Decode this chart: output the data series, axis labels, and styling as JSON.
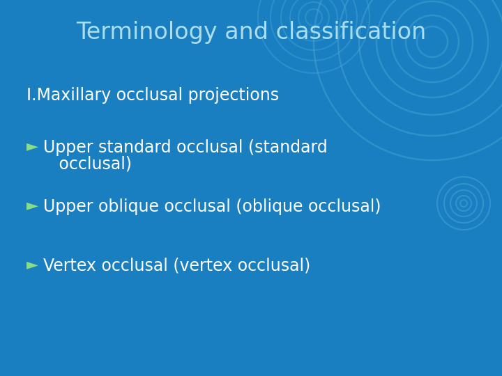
{
  "title": "Terminology and classification",
  "title_fontsize": 24,
  "title_color": "#aaddee",
  "background_color": "#1a7fc0",
  "section_label": "I.Maxillary occlusal projections",
  "section_fontsize": 17,
  "section_color": "#ffffff",
  "bullet_color": "#88dd88",
  "bullet_char": "►",
  "bullet_line1": "Upper standard occlusal (standard",
  "bullet_line1b": "   occlusal)",
  "bullet_line2": "Upper oblique occlusal (oblique occlusal)",
  "bullet_line3": "Vertex occlusal (vertex occlusal)",
  "bullet_fontsize": 17,
  "bullet_text_color": "#ffffff",
  "swirl_color": "#4aa8d8",
  "figsize": [
    7.2,
    5.4
  ],
  "dpi": 100
}
